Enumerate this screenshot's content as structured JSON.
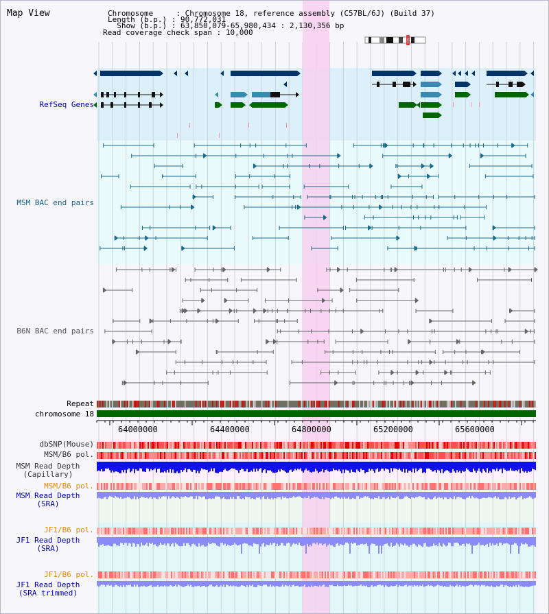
{
  "app_title": "Map View",
  "header": {
    "chromosome_key": "Chromosome    ",
    "chromosome_value": "Chromosome 18, reference assembly (C57BL/6J) (Build 37)",
    "length_key": "Length (b.p.)",
    "length_value": "90,772,031",
    "show_key": "  Show (b.p.)",
    "show_value": "63,850,079-65,980,434 : 2,130,356 bp",
    "coverage_key": "Read coverage check span",
    "coverage_value": "10,000",
    "separator": " : "
  },
  "tracks": {
    "refseq": {
      "label": "RefSeq Genes",
      "color": "#0000aa"
    },
    "msm_bac": {
      "label": "MSM BAC end pairs",
      "color": "#1a5f80"
    },
    "b6n_bac": {
      "label": "B6N BAC end pairs",
      "color": "#555555"
    },
    "repeat": {
      "label": "Repeat",
      "color": "#000000"
    },
    "chromosome": {
      "label": "chromosome 18",
      "color": "#000000"
    },
    "dbsnp": {
      "label": "dbSNP(Mouse)",
      "color": "#333333"
    },
    "msm_b6_pol": {
      "label": "MSM/B6 pol.",
      "color": "#333333"
    },
    "msm_depth_cap": {
      "line1": "MSM Read Depth",
      "line2": "(Capillary)",
      "color": "#333333"
    },
    "msm_b6_pol_sra": {
      "label": "MSM/B6 pol.",
      "color": "#e08a00"
    },
    "msm_depth_sra": {
      "line1": "MSM Read Depth",
      "line2": "(SRA)",
      "color": "#0000aa"
    },
    "jf1_b6_pol": {
      "label": "JF1/B6 pol.",
      "color": "#e08a00"
    },
    "jf1_depth_sra": {
      "line1": "JF1 Read Depth",
      "line2": "(SRA)",
      "color": "#0000aa"
    },
    "jf1_b6_pol_2": {
      "label": "JF1/B6 pol.",
      "color": "#e08a00"
    },
    "jf1_depth_trim": {
      "line1": "JF1 Read Depth",
      "line2": "(SRA trimmed)",
      "color": "#0000aa"
    }
  },
  "axis": {
    "ticks": [
      "64000000",
      "64400000",
      "64800000",
      "65200000",
      "65600000"
    ]
  },
  "colors": {
    "refseq_bg": "#dcf0fa",
    "msm_bg": "#e8fafa",
    "b6n_bg": "#f6f6fb",
    "highlight": "#f8d0f0",
    "chromosome_bar": "#006400",
    "gene_dark": "#003366",
    "gene_mid": "#3a8ab0",
    "gene_green": "#006400",
    "bac_msm": "#1a6a8a",
    "bac_b6n": "#666666",
    "depth_cap": "#1010f0",
    "depth_sra": "#8a8af8"
  }
}
